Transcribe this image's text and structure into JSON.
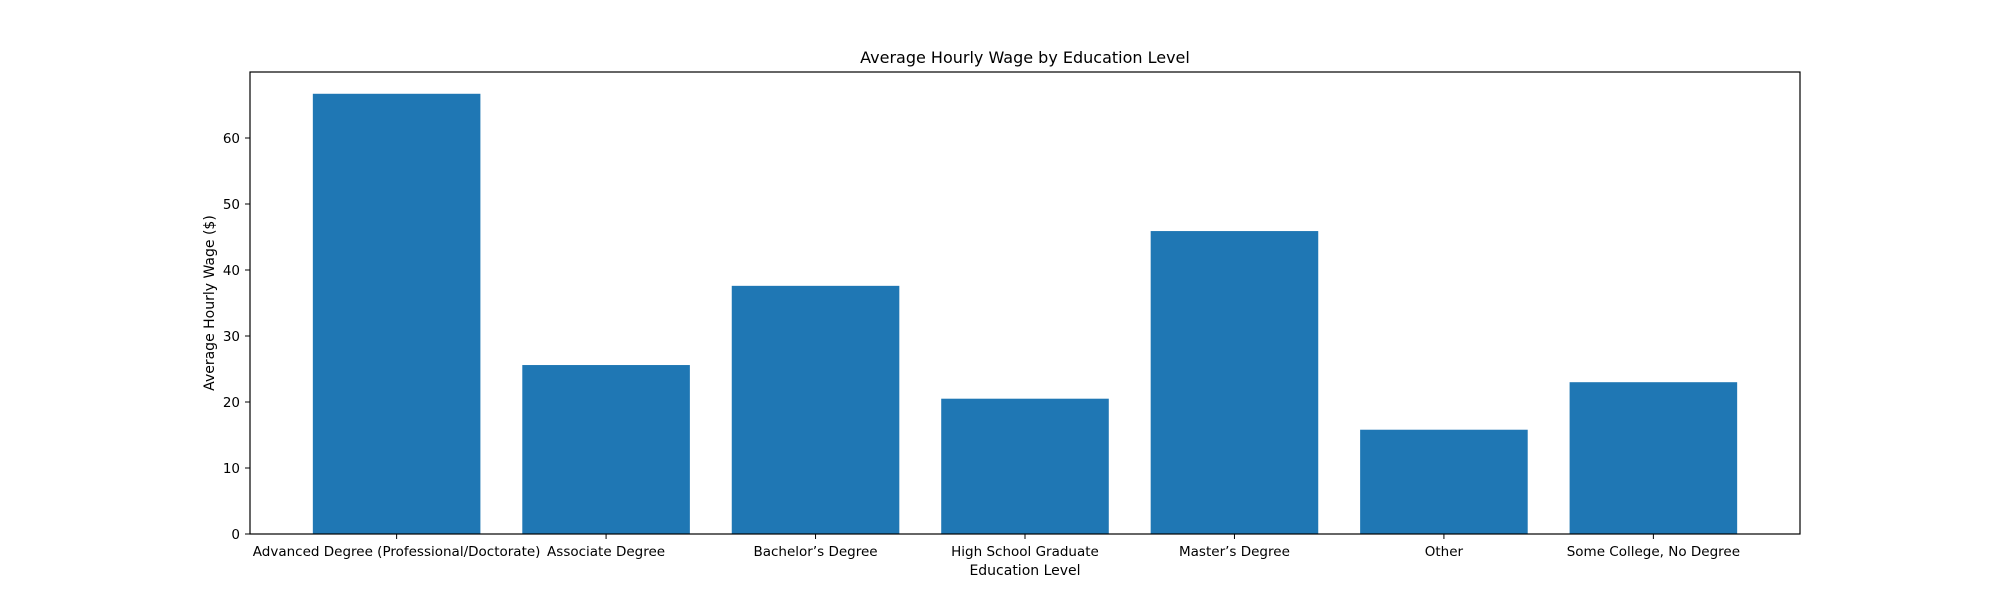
{
  "chart_data": {
    "type": "bar",
    "title": "Average Hourly Wage by Education Level",
    "xlabel": "Education Level",
    "ylabel": "Average Hourly Wage ($)",
    "categories": [
      "Advanced Degree (Professional/Doctorate)",
      "Associate Degree",
      "Bachelor’s Degree",
      "High School Graduate",
      "Master’s Degree",
      "Other",
      "Some College, No Degree"
    ],
    "values": [
      66.7,
      25.6,
      37.6,
      20.5,
      45.9,
      15.8,
      23.0
    ],
    "ylim": [
      0,
      70
    ],
    "yticks": [
      0,
      10,
      20,
      30,
      40,
      50,
      60
    ],
    "grid": false,
    "bar_color": "#1f77b4"
  }
}
